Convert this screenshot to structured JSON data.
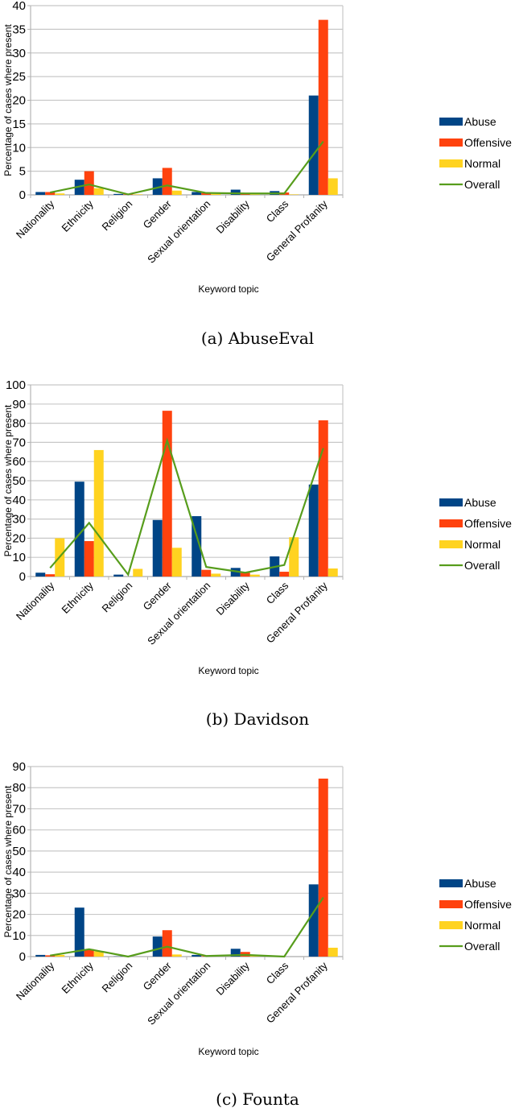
{
  "colors": {
    "Abuse": "#004586",
    "Offensive": "#ff420e",
    "Normal": "#ffd320",
    "Overall": "#579d1c"
  },
  "chart_data": [
    {
      "type": "bar",
      "caption": "(a)  AbuseEval",
      "xlabel": "Keyword topic",
      "ylabel": "Percentage of cases where present",
      "ylim": [
        0,
        40
      ],
      "yticks": [
        0,
        5,
        10,
        15,
        20,
        25,
        30,
        35,
        40
      ],
      "grid": true,
      "legend": "right",
      "categories": [
        "Nationality",
        "Ethnicity",
        "Religion",
        "Gender",
        "Sexual orientation",
        "Disability",
        "Class",
        "General Profanity"
      ],
      "series": [
        {
          "name": "Abuse",
          "kind": "bar",
          "values": [
            0.6,
            3.2,
            0.2,
            3.5,
            0.6,
            1.1,
            0.8,
            21
          ]
        },
        {
          "name": "Offensive",
          "kind": "bar",
          "values": [
            0.6,
            5.0,
            0.1,
            5.7,
            0.4,
            0.2,
            0.5,
            37
          ]
        },
        {
          "name": "Normal",
          "kind": "bar",
          "values": [
            0.3,
            1.4,
            0.1,
            0.9,
            0.2,
            0.1,
            0.1,
            3.5
          ]
        },
        {
          "name": "Overall",
          "kind": "line",
          "values": [
            0.5,
            2.2,
            0.1,
            2.0,
            0.4,
            0.3,
            0.3,
            11.3
          ]
        }
      ]
    },
    {
      "type": "bar",
      "caption": "(b)  Davidson",
      "xlabel": "Keyword topic",
      "ylabel": "Percentage of cases where present",
      "ylim": [
        0,
        100
      ],
      "yticks": [
        0,
        10,
        20,
        30,
        40,
        50,
        60,
        70,
        80,
        90,
        100
      ],
      "grid": true,
      "legend": "right",
      "categories": [
        "Nationality",
        "Ethnicity",
        "Religion",
        "Gender",
        "Sexual orientation",
        "Disability",
        "Class",
        "General Profanity"
      ],
      "series": [
        {
          "name": "Abuse",
          "kind": "bar",
          "values": [
            2.0,
            49.5,
            1.0,
            29.5,
            31.5,
            4.5,
            10.5,
            48
          ]
        },
        {
          "name": "Offensive",
          "kind": "bar",
          "values": [
            1.2,
            18.5,
            0,
            86.5,
            3.5,
            2.0,
            2.5,
            81.5
          ]
        },
        {
          "name": "Normal",
          "kind": "bar",
          "values": [
            20,
            66,
            4,
            15,
            1.5,
            1.0,
            20.5,
            4.2
          ]
        },
        {
          "name": "Overall",
          "kind": "line",
          "values": [
            4.5,
            28,
            1,
            71,
            5,
            2,
            6,
            67
          ]
        }
      ]
    },
    {
      "type": "bar",
      "caption": "(c)  Founta",
      "xlabel": "Keyword topic",
      "ylabel": "Percentage of cases where present",
      "ylim": [
        0,
        90
      ],
      "yticks": [
        0,
        10,
        20,
        30,
        40,
        50,
        60,
        70,
        80,
        90
      ],
      "grid": true,
      "legend": "right",
      "categories": [
        "Nationality",
        "Ethnicity",
        "Religion",
        "Gender",
        "Sexual orientation",
        "Disability",
        "Class",
        "General Profanity"
      ],
      "series": [
        {
          "name": "Abuse",
          "kind": "bar",
          "values": [
            0.8,
            23.2,
            0.1,
            9.5,
            0.8,
            3.7,
            0,
            34.2
          ]
        },
        {
          "name": "Offensive",
          "kind": "bar",
          "values": [
            0.6,
            3.5,
            0,
            12.5,
            0.2,
            2.2,
            0,
            84.3
          ]
        },
        {
          "name": "Normal",
          "kind": "bar",
          "values": [
            0.8,
            2.5,
            0,
            1.0,
            0,
            0.5,
            0,
            4.2
          ]
        },
        {
          "name": "Overall",
          "kind": "line",
          "values": [
            0.5,
            3.5,
            0,
            4.7,
            0.3,
            0.8,
            0,
            28
          ]
        }
      ]
    }
  ]
}
